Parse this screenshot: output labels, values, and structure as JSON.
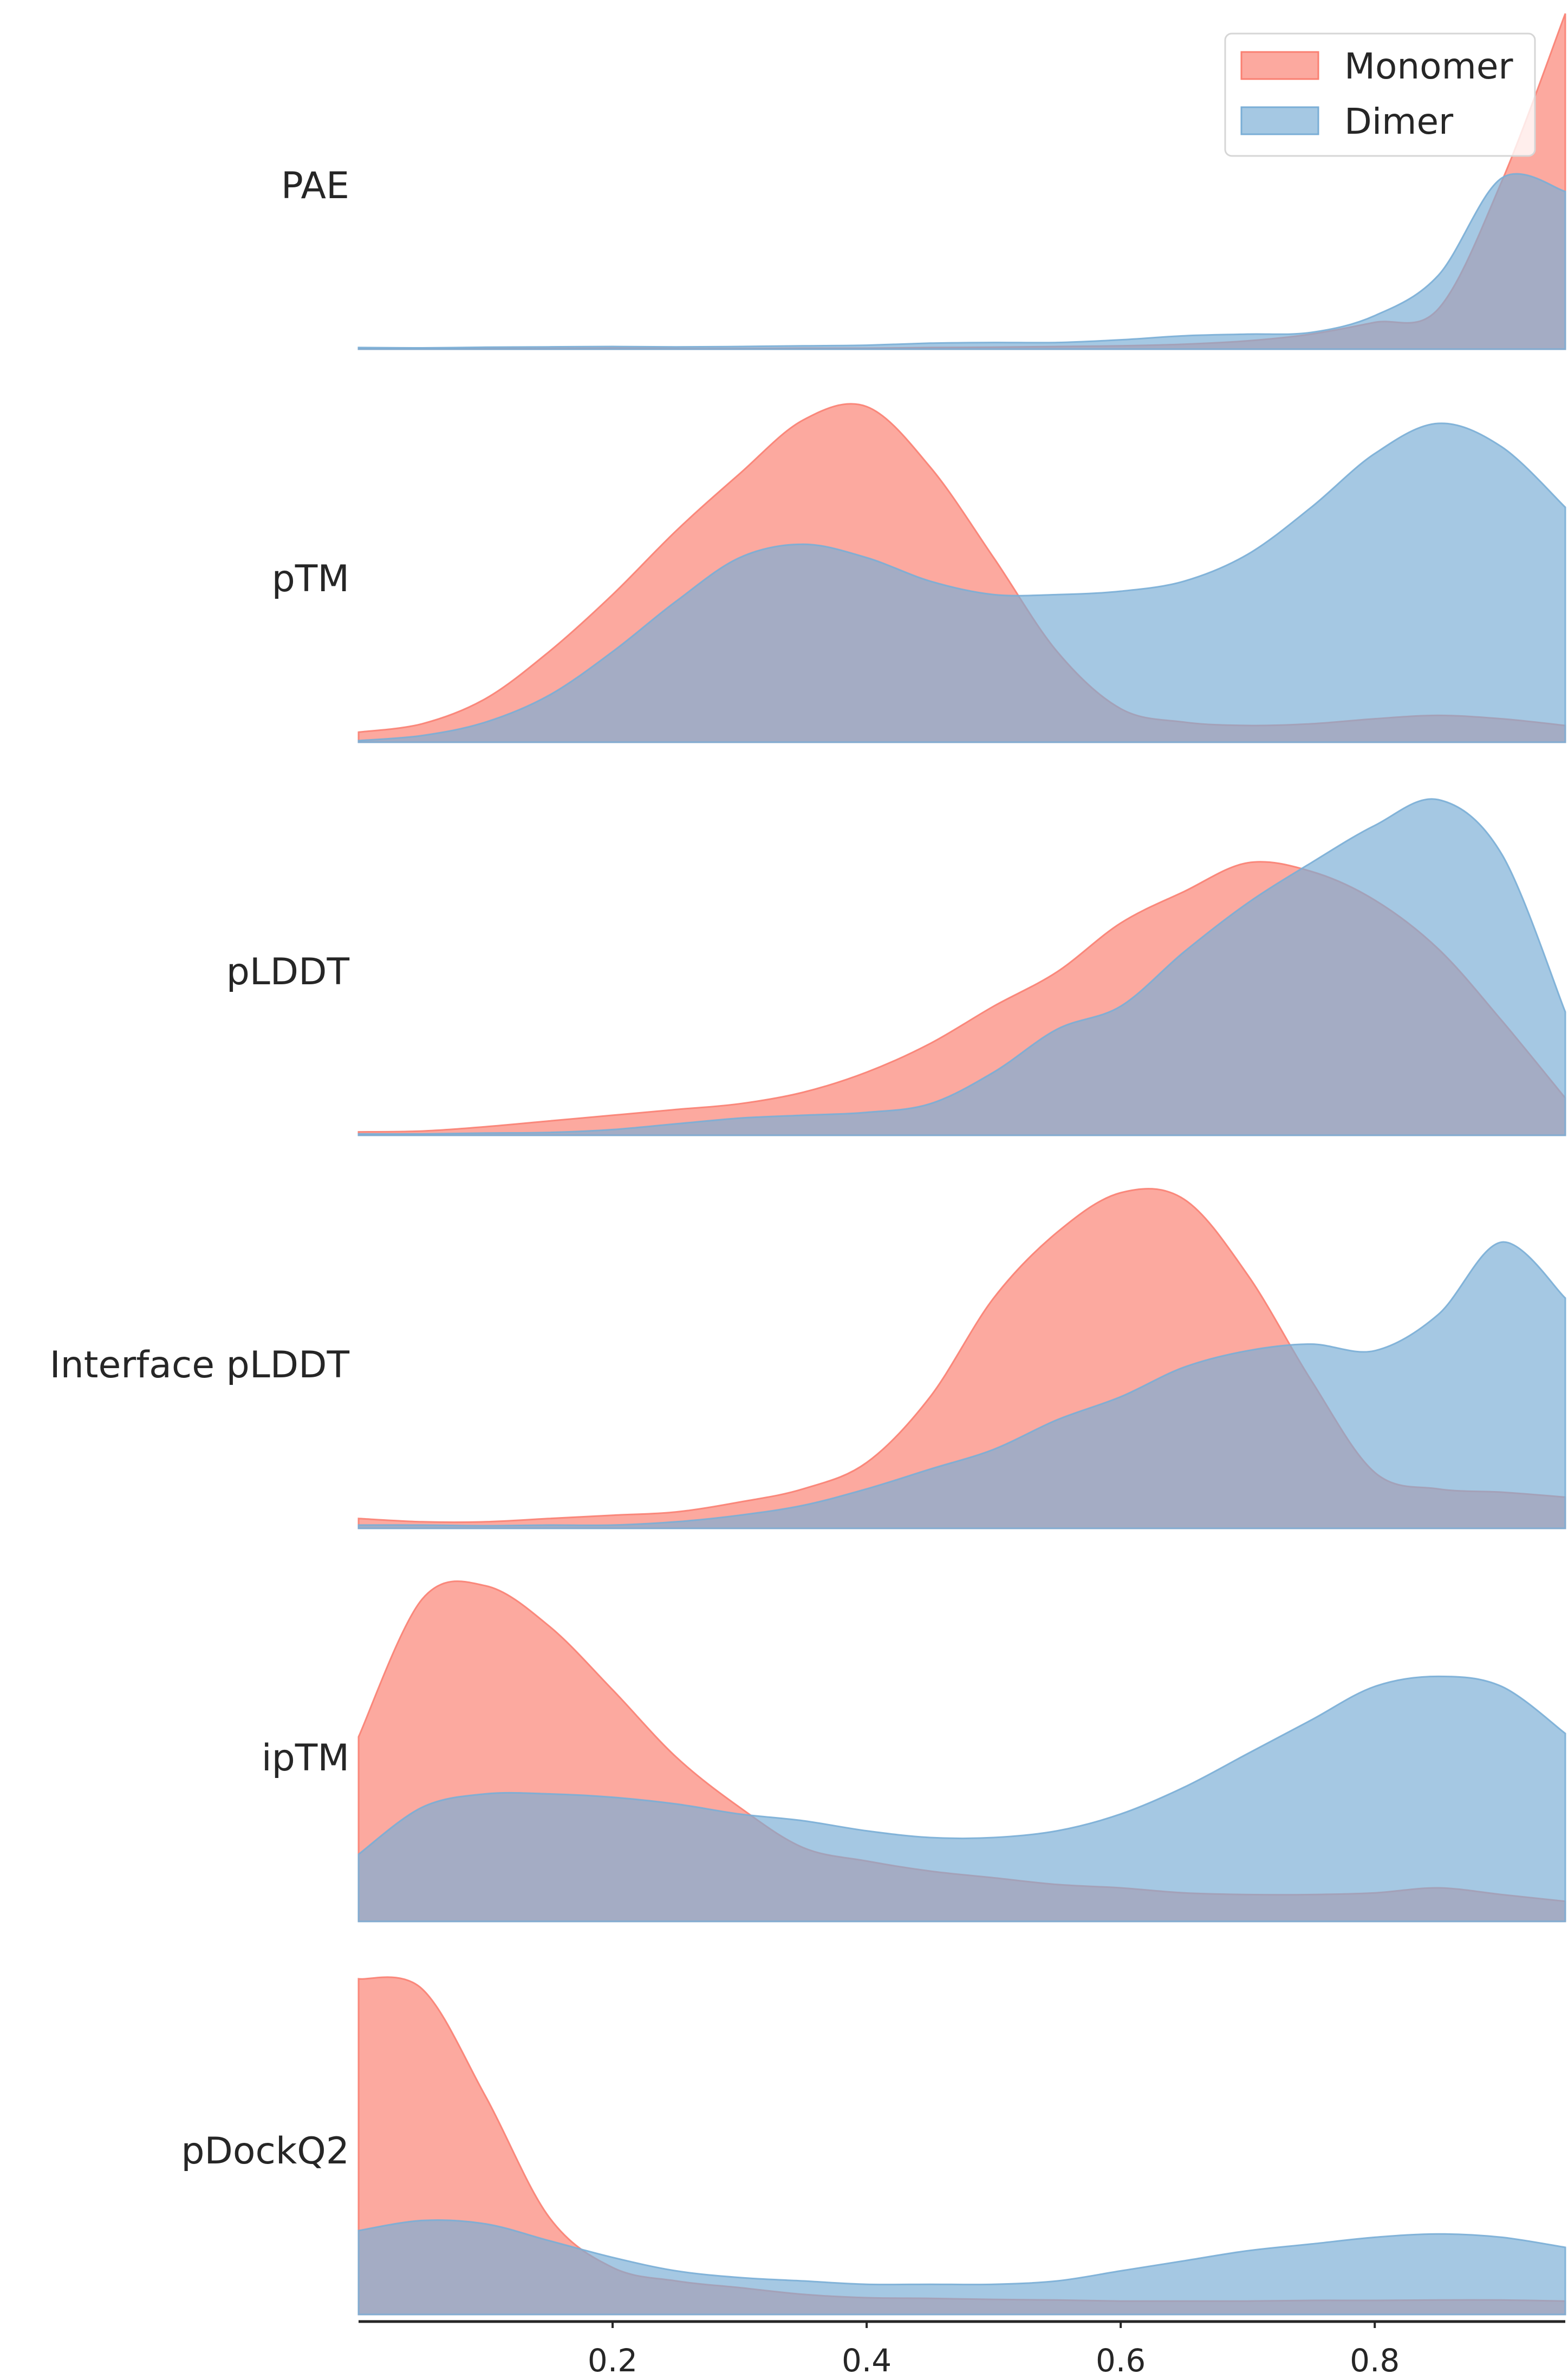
{
  "chart_data": {
    "type": "area",
    "subtype": "ridgeline-density",
    "title": "",
    "xlabel": "",
    "ylabel": "",
    "xlim": [
      0.0,
      0.95
    ],
    "xticks": [
      0.2,
      0.4,
      0.6,
      0.8
    ],
    "xtick_labels": [
      "0.2",
      "0.4",
      "0.6",
      "0.8"
    ],
    "grid": false,
    "legend": {
      "placement": "top-right",
      "entries": [
        "Monomer",
        "Dimer"
      ]
    },
    "colors": {
      "Monomer": "#fa8072",
      "Dimer": "#7aaed6"
    },
    "opacity": 0.68,
    "x": [
      0.0,
      0.05,
      0.1,
      0.15,
      0.2,
      0.25,
      0.3,
      0.35,
      0.4,
      0.45,
      0.5,
      0.55,
      0.6,
      0.65,
      0.7,
      0.75,
      0.8,
      0.85,
      0.9,
      0.95
    ],
    "categories": [
      "PAE",
      "pTM",
      "pLDDT",
      "Interface pLDDT",
      "ipTM",
      "pDockQ2"
    ],
    "panels": [
      {
        "label": "PAE",
        "series": [
          {
            "name": "Monomer",
            "values": [
              0.002,
              0.002,
              0.002,
              0.002,
              0.003,
              0.002,
              0.002,
              0.003,
              0.003,
              0.005,
              0.006,
              0.008,
              0.01,
              0.015,
              0.025,
              0.045,
              0.08,
              0.12,
              0.5,
              1.0
            ]
          },
          {
            "name": "Dimer",
            "values": [
              0.005,
              0.004,
              0.006,
              0.007,
              0.008,
              0.007,
              0.008,
              0.01,
              0.012,
              0.018,
              0.02,
              0.02,
              0.028,
              0.04,
              0.045,
              0.05,
              0.1,
              0.22,
              0.51,
              0.47
            ]
          }
        ]
      },
      {
        "label": "pTM",
        "series": [
          {
            "name": "Monomer",
            "values": [
              0.03,
              0.055,
              0.13,
              0.27,
              0.44,
              0.63,
              0.8,
              0.96,
              1.0,
              0.82,
              0.55,
              0.27,
              0.1,
              0.06,
              0.05,
              0.055,
              0.07,
              0.08,
              0.07,
              0.05
            ]
          },
          {
            "name": "Dimer",
            "values": [
              0.005,
              0.02,
              0.06,
              0.14,
              0.27,
              0.42,
              0.55,
              0.59,
              0.55,
              0.48,
              0.44,
              0.44,
              0.45,
              0.48,
              0.56,
              0.7,
              0.86,
              0.95,
              0.88,
              0.7
            ]
          }
        ]
      },
      {
        "label": "pLDDT",
        "series": [
          {
            "name": "Monomer",
            "values": [
              0.012,
              0.015,
              0.03,
              0.05,
              0.07,
              0.09,
              0.11,
              0.15,
              0.22,
              0.32,
              0.45,
              0.57,
              0.74,
              0.85,
              0.95,
              0.92,
              0.82,
              0.65,
              0.4,
              0.13
            ]
          },
          {
            "name": "Dimer",
            "values": [
              0.005,
              0.005,
              0.008,
              0.01,
              0.02,
              0.04,
              0.06,
              0.07,
              0.08,
              0.11,
              0.22,
              0.37,
              0.45,
              0.64,
              0.81,
              0.95,
              1.08,
              1.17,
              0.98,
              0.43
            ]
          }
        ]
      },
      {
        "label": "Interface pLDDT",
        "series": [
          {
            "name": "Monomer",
            "values": [
              0.03,
              0.02,
              0.02,
              0.03,
              0.04,
              0.05,
              0.08,
              0.12,
              0.2,
              0.4,
              0.7,
              0.9,
              1.02,
              1.0,
              0.77,
              0.45,
              0.17,
              0.12,
              0.11,
              0.095
            ]
          },
          {
            "name": "Dimer",
            "values": [
              0.01,
              0.01,
              0.008,
              0.01,
              0.01,
              0.02,
              0.04,
              0.07,
              0.12,
              0.18,
              0.24,
              0.33,
              0.4,
              0.49,
              0.54,
              0.56,
              0.54,
              0.65,
              0.87,
              0.7
            ]
          }
        ]
      },
      {
        "label": "ipTM",
        "series": [
          {
            "name": "Monomer",
            "values": [
              0.55,
              0.96,
              1.0,
              0.88,
              0.69,
              0.49,
              0.34,
              0.22,
              0.18,
              0.15,
              0.13,
              0.11,
              0.1,
              0.085,
              0.08,
              0.08,
              0.085,
              0.1,
              0.08,
              0.06
            ]
          },
          {
            "name": "Dimer",
            "values": [
              0.2,
              0.34,
              0.38,
              0.38,
              0.37,
              0.35,
              0.32,
              0.3,
              0.27,
              0.25,
              0.25,
              0.27,
              0.32,
              0.4,
              0.5,
              0.6,
              0.7,
              0.73,
              0.7,
              0.56
            ]
          }
        ]
      },
      {
        "label": "pDockQ2",
        "series": [
          {
            "name": "Monomer",
            "values": [
              1.0,
              0.97,
              0.65,
              0.29,
              0.14,
              0.1,
              0.08,
              0.06,
              0.05,
              0.048,
              0.045,
              0.043,
              0.04,
              0.04,
              0.04,
              0.042,
              0.042,
              0.043,
              0.043,
              0.04
            ]
          },
          {
            "name": "Dimer",
            "values": [
              0.25,
              0.28,
              0.27,
              0.22,
              0.17,
              0.13,
              0.11,
              0.1,
              0.09,
              0.09,
              0.09,
              0.1,
              0.13,
              0.16,
              0.19,
              0.21,
              0.23,
              0.24,
              0.23,
              0.2
            ]
          }
        ]
      }
    ]
  }
}
